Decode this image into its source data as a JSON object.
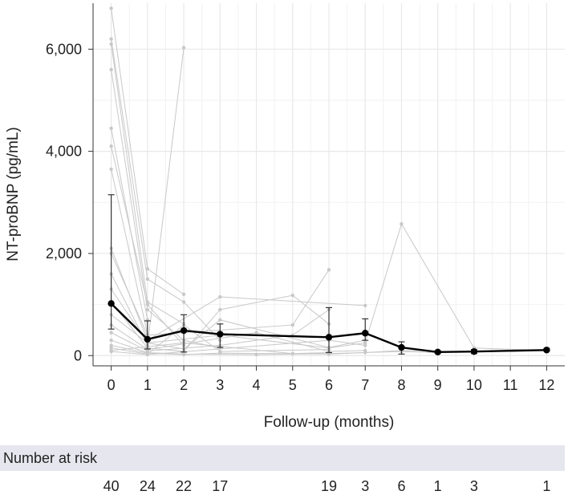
{
  "chart_data": {
    "type": "line",
    "title": "",
    "xlabel": "Follow-up (months)",
    "ylabel": "NT-proBNP (pg/mL)",
    "xlim": [
      -0.5,
      12.5
    ],
    "ylim": [
      -200,
      6900
    ],
    "x_ticks": [
      0,
      1,
      2,
      3,
      4,
      5,
      6,
      7,
      8,
      9,
      10,
      11,
      12
    ],
    "y_ticks": [
      0,
      2000,
      4000,
      6000
    ],
    "y_tick_labels": [
      "0",
      "2,000",
      "4,000",
      "6,000"
    ],
    "grid": true,
    "colors": {
      "mean": "#000000",
      "individual": "#c8c8c8",
      "grid": "#e8e8e8"
    },
    "mean_series": {
      "x": [
        0,
        1,
        2,
        3,
        6,
        7,
        8,
        9,
        10,
        12
      ],
      "y": [
        1020,
        320,
        490,
        420,
        360,
        440,
        160,
        70,
        80,
        110
      ],
      "error_upper": [
        3150,
        680,
        800,
        620,
        940,
        720,
        270,
        90,
        120,
        140
      ],
      "error_lower": [
        520,
        130,
        70,
        160,
        60,
        300,
        30,
        50,
        40,
        90
      ]
    },
    "individual_series": [
      {
        "x": [
          0,
          1,
          2
        ],
        "y": [
          6800,
          1700,
          1200
        ]
      },
      {
        "x": [
          0,
          1,
          2,
          3
        ],
        "y": [
          6200,
          1500,
          1050,
          300
        ]
      },
      {
        "x": [
          0,
          1,
          2
        ],
        "y": [
          6100,
          1050,
          620
        ]
      },
      {
        "x": [
          0,
          1,
          2,
          3
        ],
        "y": [
          5600,
          900,
          300,
          150
        ]
      },
      {
        "x": [
          0,
          1
        ],
        "y": [
          4450,
          700
        ]
      },
      {
        "x": [
          0,
          1,
          2
        ],
        "y": [
          4100,
          1000,
          200
        ]
      },
      {
        "x": [
          0,
          1
        ],
        "y": [
          3650,
          420
        ]
      },
      {
        "x": [
          0,
          1,
          3,
          7
        ],
        "y": [
          2100,
          300,
          1150,
          980
        ]
      },
      {
        "x": [
          0,
          1,
          5,
          6
        ],
        "y": [
          2000,
          400,
          600,
          1680
        ]
      },
      {
        "x": [
          0,
          1,
          2
        ],
        "y": [
          1600,
          200,
          6030
        ]
      },
      {
        "x": [
          0,
          1,
          3,
          6,
          7,
          8,
          10,
          12
        ],
        "y": [
          1300,
          250,
          400,
          150,
          250,
          2580,
          150,
          100
        ]
      },
      {
        "x": [
          0,
          1,
          2,
          3,
          5,
          6
        ],
        "y": [
          1050,
          150,
          80,
          900,
          1180,
          620
        ]
      },
      {
        "x": [
          0,
          1,
          2,
          3,
          6,
          7
        ],
        "y": [
          800,
          250,
          130,
          700,
          160,
          300
        ]
      },
      {
        "x": [
          0,
          1,
          4,
          6,
          7
        ],
        "y": [
          600,
          120,
          450,
          80,
          100
        ]
      },
      {
        "x": [
          0,
          1,
          3,
          5,
          6
        ],
        "y": [
          450,
          90,
          200,
          400,
          900
        ]
      },
      {
        "x": [
          0,
          1,
          2,
          4,
          6,
          8,
          9
        ],
        "y": [
          300,
          60,
          30,
          20,
          40,
          80,
          60
        ]
      },
      {
        "x": [
          0,
          1,
          2,
          3,
          6,
          7,
          8,
          10
        ],
        "y": [
          200,
          50,
          20,
          50,
          30,
          60,
          100,
          70
        ]
      },
      {
        "x": [
          0,
          1,
          2,
          3,
          6
        ],
        "y": [
          150,
          30,
          600,
          80,
          120
        ]
      },
      {
        "x": [
          0,
          2,
          5,
          6
        ],
        "y": [
          100,
          250,
          40,
          60
        ]
      },
      {
        "x": [
          0,
          1,
          6,
          7
        ],
        "y": [
          80,
          20,
          300,
          200
        ]
      }
    ],
    "risk_table": {
      "title": "Number at risk",
      "months": [
        0,
        1,
        2,
        3,
        6,
        7,
        8,
        9,
        10,
        12
      ],
      "counts": [
        "40",
        "24",
        "22",
        "17",
        "19",
        "3",
        "6",
        "1",
        "3",
        "1"
      ]
    }
  }
}
